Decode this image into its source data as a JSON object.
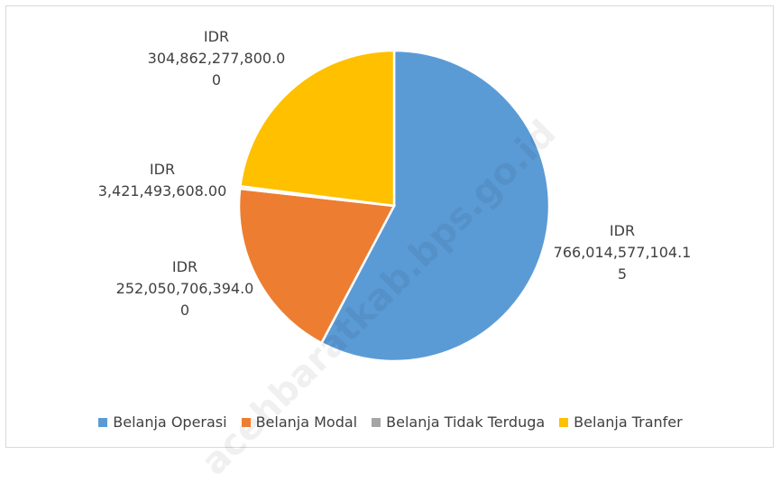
{
  "chart_data": {
    "type": "pie",
    "categories": [
      "Belanja Operasi",
      "Belanja Modal",
      "Belanja Tidak Terduga",
      "Belanja Tranfer"
    ],
    "values": [
      766014577104.15,
      252050706394.0,
      3421493608.0,
      304862277800.0
    ],
    "value_labels": [
      "IDR 766,014,577,104.15",
      "IDR 252,050,706,394.00",
      "IDR 3,421,493,608.00",
      "IDR 304,862,277,800.00"
    ],
    "colors": [
      "#5b9bd5",
      "#ed7d31",
      "#a5a5a5",
      "#ffc000"
    ],
    "legend": "bottom",
    "watermark": "acehbaratkab.bps.go.id"
  }
}
